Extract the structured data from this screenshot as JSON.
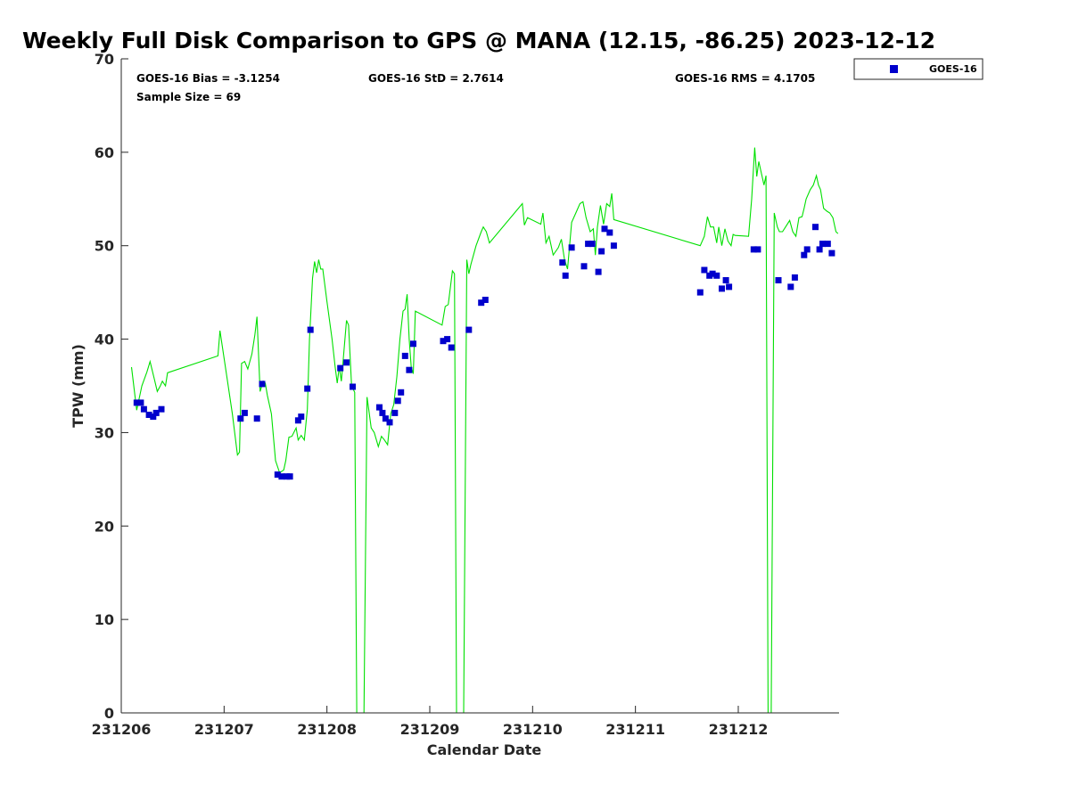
{
  "chart_data": {
    "type": "scatter",
    "title": "Weekly Full Disk Comparison to GPS @ MANA (12.15, -86.25) 2023-12-12",
    "xlabel": "Calendar Date",
    "ylabel": "TPW (mm)",
    "xlim": [
      0,
      6.98
    ],
    "ylim": [
      0,
      70
    ],
    "x_ticks": [
      {
        "value": 0,
        "label": "231206"
      },
      {
        "value": 1,
        "label": "231207"
      },
      {
        "value": 2,
        "label": "231208"
      },
      {
        "value": 3,
        "label": "231209"
      },
      {
        "value": 4,
        "label": "231210"
      },
      {
        "value": 5,
        "label": "231211"
      },
      {
        "value": 6,
        "label": "231212"
      }
    ],
    "y_ticks": [
      0,
      10,
      20,
      30,
      40,
      50,
      60,
      70
    ],
    "stats": {
      "bias": "GOES-16 Bias = -3.1254",
      "std": "GOES-16 StD = 2.7614",
      "rms": "GOES-16 RMS = 4.1705",
      "sample": "Sample Size = 69"
    },
    "legend": {
      "label": "GOES-16",
      "position": "top-right outside"
    },
    "colors": {
      "goes": "#0000cc",
      "gps": "#00e000",
      "axis": "#262626"
    },
    "series": [
      {
        "name": "GPS",
        "style": "line",
        "points": [
          [
            0.1,
            37.0
          ],
          [
            0.15,
            32.4
          ],
          [
            0.2,
            35.0
          ],
          [
            0.25,
            36.5
          ],
          [
            0.28,
            37.6
          ],
          [
            0.32,
            35.8
          ],
          [
            0.35,
            34.4
          ],
          [
            0.38,
            35.0
          ],
          [
            0.4,
            35.5
          ],
          [
            0.43,
            35.0
          ],
          [
            0.45,
            36.4
          ],
          [
            0.94,
            38.2
          ],
          [
            0.96,
            40.9
          ],
          [
            1.02,
            36.5
          ],
          [
            1.08,
            32.0
          ],
          [
            1.13,
            27.6
          ],
          [
            1.15,
            27.9
          ],
          [
            1.17,
            37.4
          ],
          [
            1.2,
            37.6
          ],
          [
            1.23,
            36.8
          ],
          [
            1.27,
            38.4
          ],
          [
            1.3,
            40.5
          ],
          [
            1.32,
            42.4
          ],
          [
            1.35,
            34.4
          ],
          [
            1.38,
            35.5
          ],
          [
            1.4,
            35.3
          ],
          [
            1.42,
            34.0
          ],
          [
            1.46,
            32.0
          ],
          [
            1.5,
            27.0
          ],
          [
            1.54,
            25.7
          ],
          [
            1.58,
            26.0
          ],
          [
            1.6,
            27.0
          ],
          [
            1.63,
            29.5
          ],
          [
            1.66,
            29.6
          ],
          [
            1.7,
            30.5
          ],
          [
            1.72,
            29.2
          ],
          [
            1.75,
            29.7
          ],
          [
            1.78,
            29.2
          ],
          [
            1.81,
            32.5
          ],
          [
            1.83,
            40.0
          ],
          [
            1.86,
            46.5
          ],
          [
            1.88,
            48.3
          ],
          [
            1.9,
            47.1
          ],
          [
            1.92,
            48.5
          ],
          [
            1.94,
            47.5
          ],
          [
            1.96,
            47.5
          ],
          [
            2.0,
            44.0
          ],
          [
            2.05,
            40.0
          ],
          [
            2.08,
            37.0
          ],
          [
            2.1,
            35.3
          ],
          [
            2.12,
            37.0
          ],
          [
            2.14,
            35.5
          ],
          [
            2.16,
            38.0
          ],
          [
            2.19,
            42.0
          ],
          [
            2.21,
            41.5
          ],
          [
            2.24,
            35.0
          ],
          [
            2.27,
            34.3
          ],
          [
            2.29,
            0.0
          ],
          [
            2.36,
            0.0
          ],
          [
            2.39,
            33.8
          ],
          [
            2.4,
            33.0
          ],
          [
            2.43,
            30.5
          ],
          [
            2.46,
            30.0
          ],
          [
            2.5,
            28.5
          ],
          [
            2.53,
            29.6
          ],
          [
            2.56,
            29.2
          ],
          [
            2.59,
            28.7
          ],
          [
            2.62,
            32.0
          ],
          [
            2.65,
            33.0
          ],
          [
            2.68,
            36.0
          ],
          [
            2.71,
            40.0
          ],
          [
            2.74,
            43.0
          ],
          [
            2.76,
            43.2
          ],
          [
            2.78,
            44.8
          ],
          [
            2.8,
            40.0
          ],
          [
            2.82,
            37.0
          ],
          [
            2.84,
            36.3
          ],
          [
            2.86,
            43.0
          ],
          [
            3.12,
            41.5
          ],
          [
            3.15,
            43.5
          ],
          [
            3.18,
            43.7
          ],
          [
            3.22,
            47.3
          ],
          [
            3.24,
            47.0
          ],
          [
            3.26,
            0.0
          ],
          [
            3.33,
            0.0
          ],
          [
            3.36,
            48.5
          ],
          [
            3.38,
            47.0
          ],
          [
            3.4,
            48.0
          ],
          [
            3.45,
            50.0
          ],
          [
            3.5,
            51.5
          ],
          [
            3.52,
            52.0
          ],
          [
            3.55,
            51.5
          ],
          [
            3.58,
            50.3
          ],
          [
            3.9,
            54.5
          ],
          [
            3.92,
            52.2
          ],
          [
            3.95,
            53.0
          ],
          [
            4.08,
            52.3
          ],
          [
            4.1,
            53.5
          ],
          [
            4.13,
            50.3
          ],
          [
            4.16,
            51.0
          ],
          [
            4.2,
            49.0
          ],
          [
            4.25,
            49.8
          ],
          [
            4.28,
            50.7
          ],
          [
            4.31,
            48.5
          ],
          [
            4.34,
            47.5
          ],
          [
            4.38,
            52.5
          ],
          [
            4.42,
            53.5
          ],
          [
            4.46,
            54.5
          ],
          [
            4.49,
            54.7
          ],
          [
            4.52,
            53.0
          ],
          [
            4.56,
            51.5
          ],
          [
            4.59,
            51.8
          ],
          [
            4.61,
            49.0
          ],
          [
            4.63,
            52.0
          ],
          [
            4.66,
            54.3
          ],
          [
            4.69,
            52.3
          ],
          [
            4.72,
            54.5
          ],
          [
            4.75,
            54.2
          ],
          [
            4.77,
            55.6
          ],
          [
            4.79,
            52.8
          ],
          [
            5.63,
            50.0
          ],
          [
            5.67,
            51.0
          ],
          [
            5.7,
            53.1
          ],
          [
            5.73,
            52.0
          ],
          [
            5.76,
            52.0
          ],
          [
            5.79,
            50.3
          ],
          [
            5.81,
            52.0
          ],
          [
            5.84,
            50.0
          ],
          [
            5.87,
            51.8
          ],
          [
            5.9,
            50.5
          ],
          [
            5.93,
            50.0
          ],
          [
            5.95,
            51.2
          ],
          [
            5.97,
            51.1
          ],
          [
            6.1,
            51.0
          ],
          [
            6.13,
            55.0
          ],
          [
            6.16,
            60.5
          ],
          [
            6.18,
            57.4
          ],
          [
            6.2,
            59.0
          ],
          [
            6.22,
            58.0
          ],
          [
            6.25,
            56.5
          ],
          [
            6.27,
            57.5
          ],
          [
            6.29,
            0.0
          ],
          [
            6.32,
            0.0
          ],
          [
            6.35,
            53.5
          ],
          [
            6.38,
            52.0
          ],
          [
            6.4,
            51.5
          ],
          [
            6.43,
            51.5
          ],
          [
            6.46,
            52.0
          ],
          [
            6.5,
            52.7
          ],
          [
            6.53,
            51.5
          ],
          [
            6.56,
            51.0
          ],
          [
            6.59,
            53.0
          ],
          [
            6.62,
            53.1
          ],
          [
            6.64,
            54.0
          ],
          [
            6.66,
            55.0
          ],
          [
            6.7,
            56.0
          ],
          [
            6.73,
            56.5
          ],
          [
            6.76,
            57.5
          ],
          [
            6.78,
            56.5
          ],
          [
            6.8,
            56.0
          ],
          [
            6.83,
            54.0
          ],
          [
            6.86,
            53.7
          ],
          [
            6.89,
            53.5
          ],
          [
            6.92,
            53.0
          ],
          [
            6.95,
            51.5
          ],
          [
            6.97,
            51.3
          ]
        ]
      },
      {
        "name": "GOES-16",
        "style": "markers",
        "points": [
          [
            0.15,
            33.2
          ],
          [
            0.19,
            33.2
          ],
          [
            0.22,
            32.5
          ],
          [
            0.27,
            31.9
          ],
          [
            0.31,
            31.7
          ],
          [
            0.34,
            32.1
          ],
          [
            0.39,
            32.5
          ],
          [
            1.16,
            31.5
          ],
          [
            1.2,
            32.1
          ],
          [
            1.32,
            31.5
          ],
          [
            1.37,
            35.2
          ],
          [
            1.52,
            25.5
          ],
          [
            1.56,
            25.3
          ],
          [
            1.61,
            25.3
          ],
          [
            1.64,
            25.3
          ],
          [
            1.72,
            31.3
          ],
          [
            1.75,
            31.7
          ],
          [
            1.81,
            34.7
          ],
          [
            1.84,
            41.0
          ],
          [
            2.13,
            36.9
          ],
          [
            2.19,
            37.5
          ],
          [
            2.25,
            34.9
          ],
          [
            2.51,
            32.7
          ],
          [
            2.54,
            32.1
          ],
          [
            2.57,
            31.5
          ],
          [
            2.61,
            31.1
          ],
          [
            2.66,
            32.1
          ],
          [
            2.69,
            33.4
          ],
          [
            2.72,
            34.3
          ],
          [
            2.76,
            38.2
          ],
          [
            2.8,
            36.7
          ],
          [
            2.84,
            39.5
          ],
          [
            3.13,
            39.8
          ],
          [
            3.17,
            40.0
          ],
          [
            3.21,
            39.1
          ],
          [
            3.38,
            41.0
          ],
          [
            3.5,
            43.9
          ],
          [
            3.54,
            44.2
          ],
          [
            4.29,
            48.2
          ],
          [
            4.32,
            46.8
          ],
          [
            4.38,
            49.8
          ],
          [
            4.5,
            47.8
          ],
          [
            4.54,
            50.2
          ],
          [
            4.58,
            50.2
          ],
          [
            4.64,
            47.2
          ],
          [
            4.67,
            49.4
          ],
          [
            4.7,
            51.8
          ],
          [
            4.75,
            51.4
          ],
          [
            4.79,
            50.0
          ],
          [
            5.63,
            45.0
          ],
          [
            5.67,
            47.4
          ],
          [
            5.72,
            46.8
          ],
          [
            5.75,
            47.0
          ],
          [
            5.79,
            46.8
          ],
          [
            5.84,
            45.4
          ],
          [
            5.88,
            46.3
          ],
          [
            5.91,
            45.6
          ],
          [
            6.15,
            49.6
          ],
          [
            6.19,
            49.6
          ],
          [
            6.39,
            46.3
          ],
          [
            6.51,
            45.6
          ],
          [
            6.55,
            46.6
          ],
          [
            6.64,
            49.0
          ],
          [
            6.67,
            49.6
          ],
          [
            6.75,
            52.0
          ],
          [
            6.79,
            49.6
          ],
          [
            6.82,
            50.2
          ],
          [
            6.87,
            50.2
          ],
          [
            6.91,
            49.2
          ]
        ]
      }
    ]
  }
}
